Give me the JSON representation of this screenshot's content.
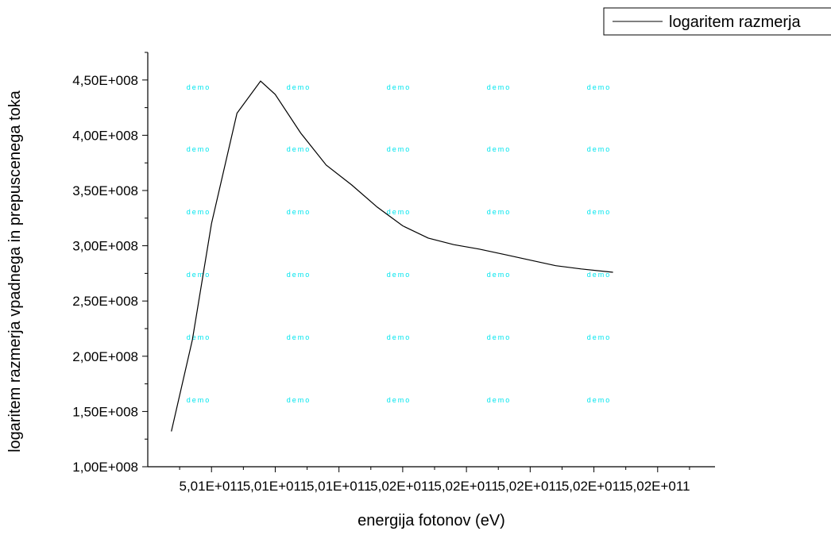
{
  "chart_data": {
    "type": "line",
    "xlabel": "energija fotonov (eV)",
    "ylabel": "logaritem razmerja vpadnega in prepuscenega toka",
    "x_tick_labels": [
      "5,01E+011",
      "5,01E+011",
      "5,01E+011",
      "5,02E+011",
      "5,02E+011",
      "5,02E+011",
      "5,02E+011",
      "5,02E+011"
    ],
    "y_ticks": [
      {
        "value": 100000000,
        "label": "1,00E+008"
      },
      {
        "value": 150000000,
        "label": "1,50E+008"
      },
      {
        "value": 200000000,
        "label": "2,00E+008"
      },
      {
        "value": 250000000,
        "label": "2,50E+008"
      },
      {
        "value": 300000000,
        "label": "3,00E+008"
      },
      {
        "value": 350000000,
        "label": "3,50E+008"
      },
      {
        "value": 400000000,
        "label": "4,00E+008"
      },
      {
        "value": 450000000,
        "label": "4,50E+008"
      }
    ],
    "ylim": [
      100000000,
      475000000
    ],
    "xlim": [
      0,
      8.9
    ],
    "series": [
      {
        "name": "logaritem razmerja",
        "color": "#000000",
        "points": [
          {
            "x": 0.37,
            "y": 132000000
          },
          {
            "x": 0.7,
            "y": 215000000
          },
          {
            "x": 1.0,
            "y": 320000000
          },
          {
            "x": 1.4,
            "y": 420000000
          },
          {
            "x": 1.77,
            "y": 449000000
          },
          {
            "x": 2.0,
            "y": 437000000
          },
          {
            "x": 2.4,
            "y": 402000000
          },
          {
            "x": 2.8,
            "y": 373000000
          },
          {
            "x": 3.2,
            "y": 355000000
          },
          {
            "x": 3.6,
            "y": 335000000
          },
          {
            "x": 4.0,
            "y": 318000000
          },
          {
            "x": 4.4,
            "y": 307000000
          },
          {
            "x": 4.8,
            "y": 301000000
          },
          {
            "x": 5.2,
            "y": 297000000
          },
          {
            "x": 5.6,
            "y": 292000000
          },
          {
            "x": 6.0,
            "y": 287000000
          },
          {
            "x": 6.4,
            "y": 282000000
          },
          {
            "x": 6.8,
            "y": 279000000
          },
          {
            "x": 7.3,
            "y": 276000000
          }
        ]
      }
    ],
    "legend": {
      "position": "top-right",
      "label": "logaritem razmerja"
    },
    "watermark_text": "demo",
    "grid": false
  }
}
